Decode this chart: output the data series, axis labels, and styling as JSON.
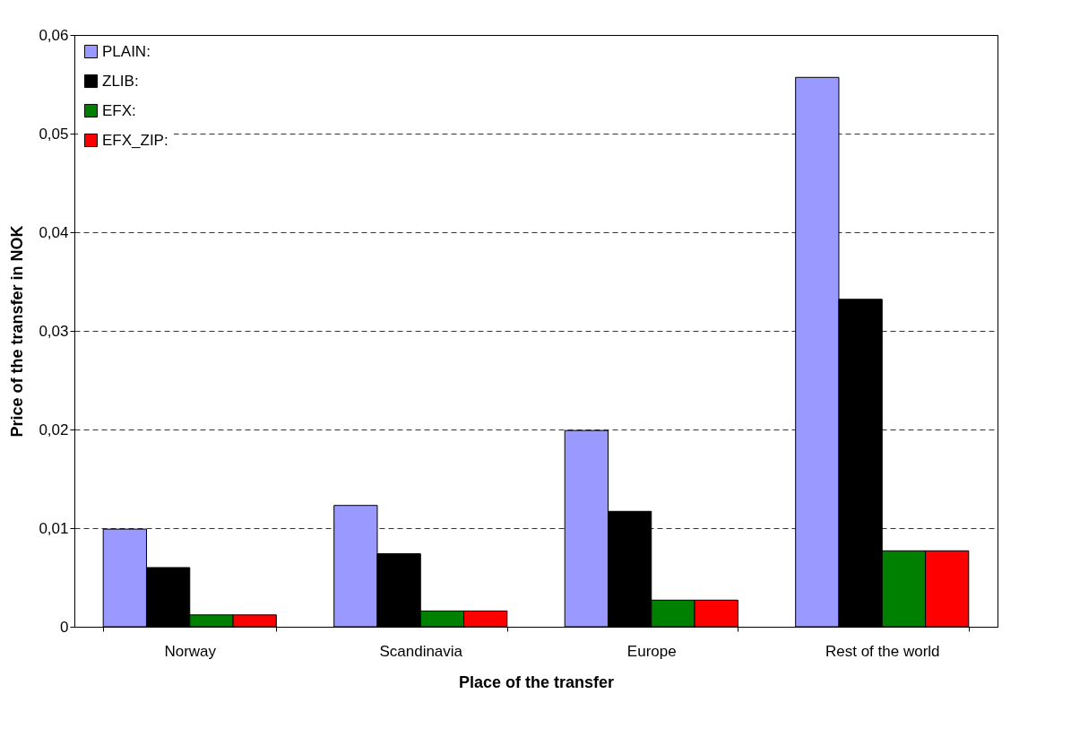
{
  "chart_data": {
    "type": "bar",
    "xlabel": "Place of the transfer",
    "ylabel": "Price of the transfer in NOK",
    "categories": [
      "Norway",
      "Scandinavia",
      "Europe",
      "Rest of the world"
    ],
    "series": [
      {
        "name": "PLAIN:",
        "color": "#9999ff",
        "values": [
          0.0099,
          0.0123,
          0.0199,
          0.0557
        ]
      },
      {
        "name": "ZLIB:",
        "color": "#000000",
        "values": [
          0.006,
          0.0074,
          0.0117,
          0.0332
        ]
      },
      {
        "name": "EFX:",
        "color": "#008000",
        "values": [
          0.0012,
          0.0016,
          0.0027,
          0.0077
        ]
      },
      {
        "name": "EFX_ZIP:",
        "color": "#ff0000",
        "values": [
          0.0012,
          0.0016,
          0.0027,
          0.0077
        ]
      }
    ],
    "ylim": [
      0,
      0.06
    ],
    "yticks": [
      {
        "value": 0,
        "label": "0"
      },
      {
        "value": 0.01,
        "label": "0,01"
      },
      {
        "value": 0.02,
        "label": "0,02"
      },
      {
        "value": 0.03,
        "label": "0,03"
      },
      {
        "value": 0.04,
        "label": "0,04"
      },
      {
        "value": 0.05,
        "label": "0,05"
      },
      {
        "value": 0.06,
        "label": "0,06"
      }
    ],
    "grid": "y",
    "legend": "top left"
  }
}
